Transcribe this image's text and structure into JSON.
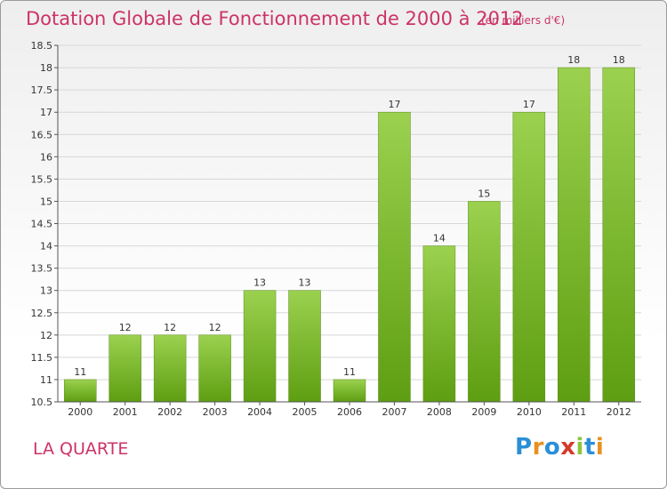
{
  "header": {
    "title": "Dotation Globale de Fonctionnement de 2000 à 2012",
    "subtitle": "(en milliers d'€)"
  },
  "footer": {
    "commune": "LA QUARTE",
    "logo": "Proxiti"
  },
  "colors": {
    "title": "#cc3366",
    "bar_top": "#9bd14f",
    "bar_bottom": "#5e9e12",
    "grid": "#d7d7d7"
  },
  "chart_data": {
    "type": "bar",
    "categories": [
      "2000",
      "2001",
      "2002",
      "2003",
      "2004",
      "2005",
      "2006",
      "2007",
      "2008",
      "2009",
      "2010",
      "2011",
      "2012"
    ],
    "values": [
      11,
      12,
      12,
      12,
      13,
      13,
      11,
      17,
      14,
      15,
      17,
      18,
      18
    ],
    "title": "Dotation Globale de Fonctionnement de 2000 à 2012",
    "xlabel": "",
    "ylabel": "",
    "ylim": [
      10.5,
      18.5
    ],
    "yticks": [
      "10.5",
      "11",
      "11.5",
      "12",
      "12.5",
      "13",
      "13.5",
      "14",
      "14.5",
      "15",
      "15.5",
      "16",
      "16.5",
      "17",
      "17.5",
      "18",
      "18.5"
    ],
    "grid": true,
    "data_labels": true
  }
}
